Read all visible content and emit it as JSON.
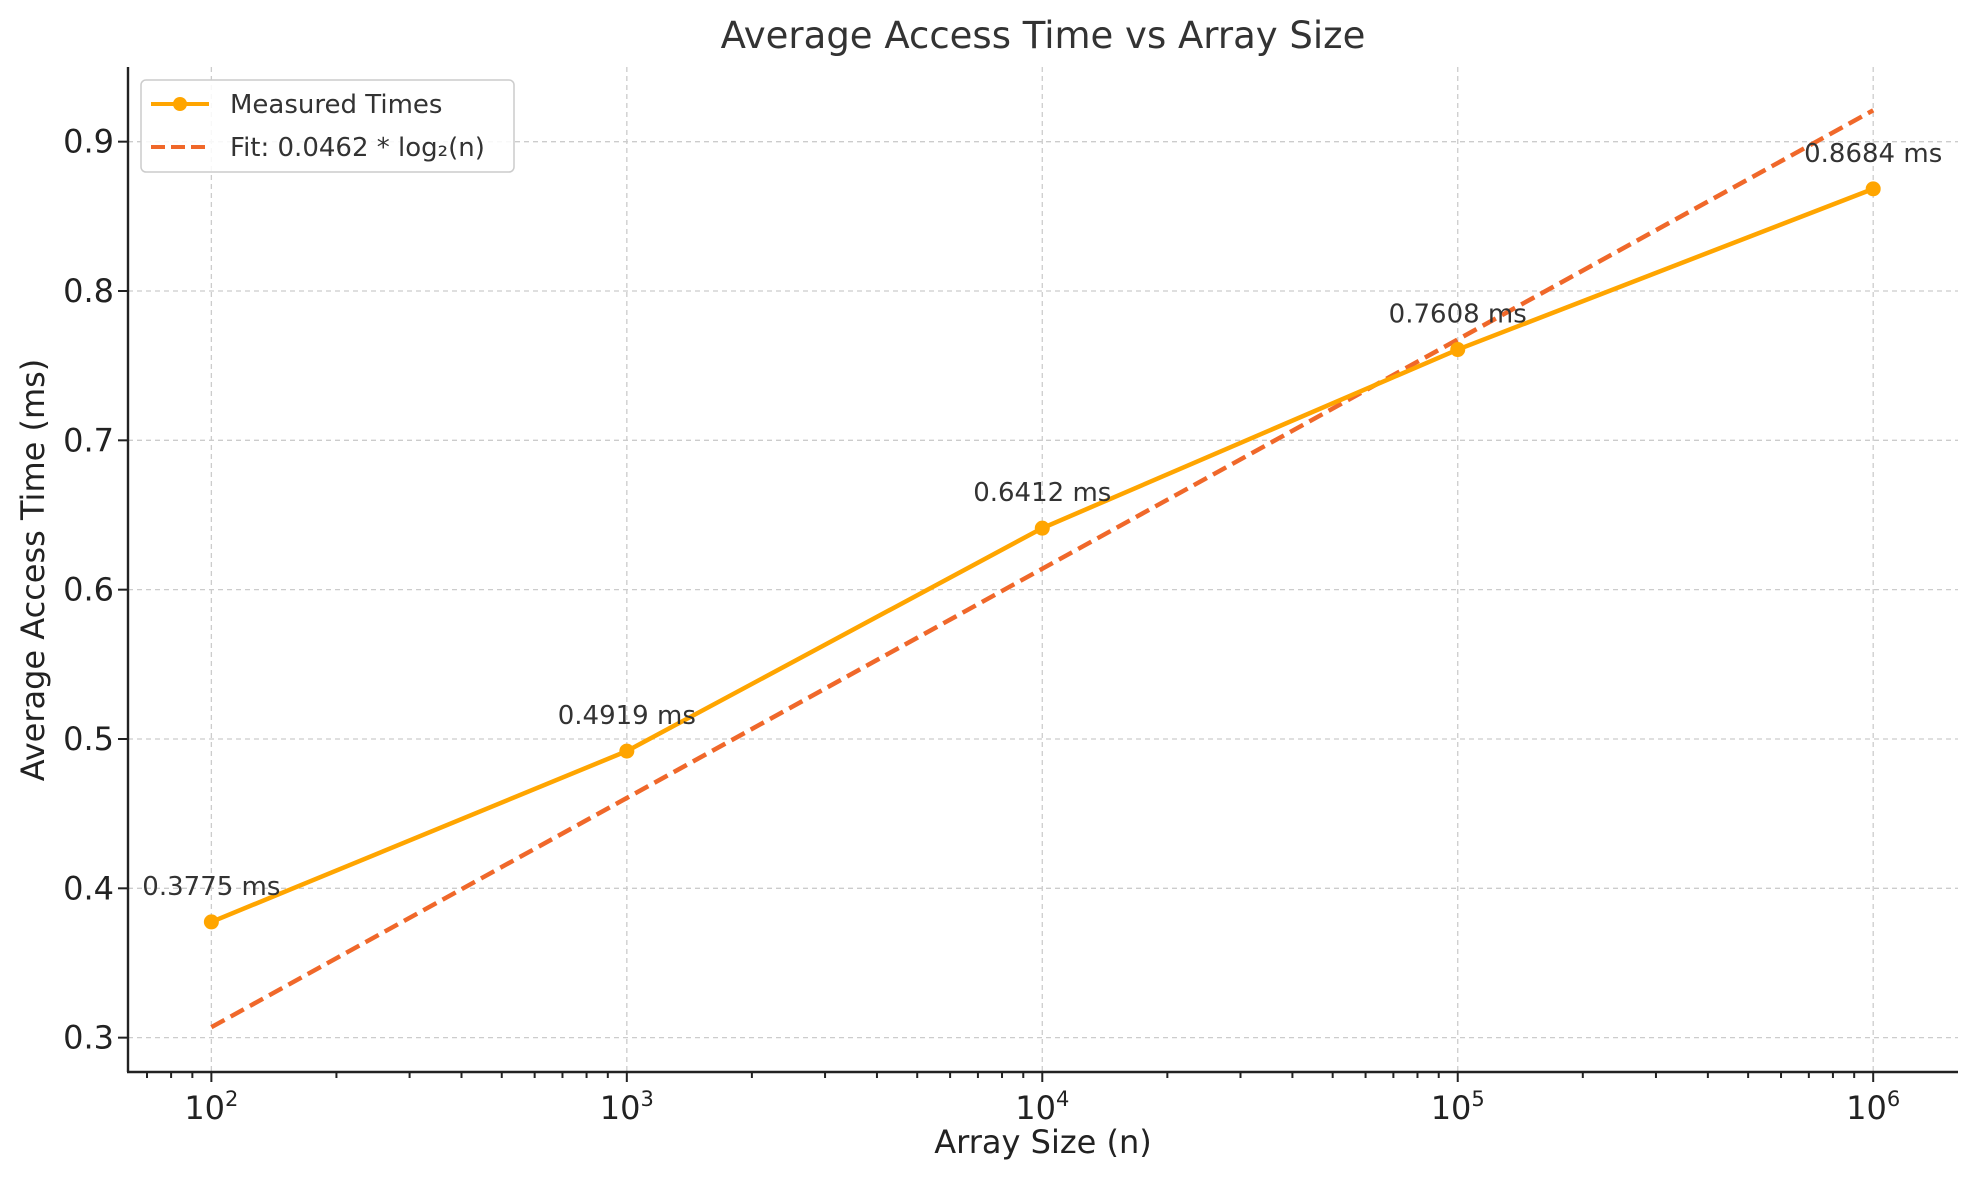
{
  "chart_data": {
    "type": "line",
    "title": "Average Access Time vs Array Size",
    "xlabel": "Array Size (n)",
    "ylabel": "Average Access Time (ms)",
    "xscale": "log",
    "xlim": [
      63,
      1600000
    ],
    "ylim": [
      0.277,
      0.95
    ],
    "x_ticks": [
      {
        "value": 100,
        "base": "10",
        "exp": "2"
      },
      {
        "value": 1000,
        "base": "10",
        "exp": "3"
      },
      {
        "value": 10000,
        "base": "10",
        "exp": "4"
      },
      {
        "value": 100000,
        "base": "10",
        "exp": "5"
      },
      {
        "value": 1000000,
        "base": "10",
        "exp": "6"
      }
    ],
    "y_ticks": [
      {
        "value": 0.3,
        "label": "0.3"
      },
      {
        "value": 0.4,
        "label": "0.4"
      },
      {
        "value": 0.5,
        "label": "0.5"
      },
      {
        "value": 0.6,
        "label": "0.6"
      },
      {
        "value": 0.7,
        "label": "0.7"
      },
      {
        "value": 0.8,
        "label": "0.8"
      },
      {
        "value": 0.9,
        "label": "0.9"
      }
    ],
    "grid": true,
    "legend_position": "top-left",
    "series": [
      {
        "name": "Measured Times",
        "style": "solid-with-markers",
        "color": "#FFA500",
        "x": [
          100,
          1000,
          10000,
          100000,
          1000000
        ],
        "y": [
          0.3775,
          0.4919,
          0.6412,
          0.7608,
          0.8684
        ],
        "labels": [
          "0.3775 ms",
          "0.4919 ms",
          "0.6412 ms",
          "0.7608 ms",
          "0.8684 ms"
        ]
      },
      {
        "name": "Fit: 0.0462 * log₂(n)",
        "style": "dashed",
        "color": "#F0682A",
        "coefficient": 0.0462,
        "x": [
          100,
          1000000
        ],
        "y": [
          0.307,
          0.921
        ]
      }
    ]
  }
}
